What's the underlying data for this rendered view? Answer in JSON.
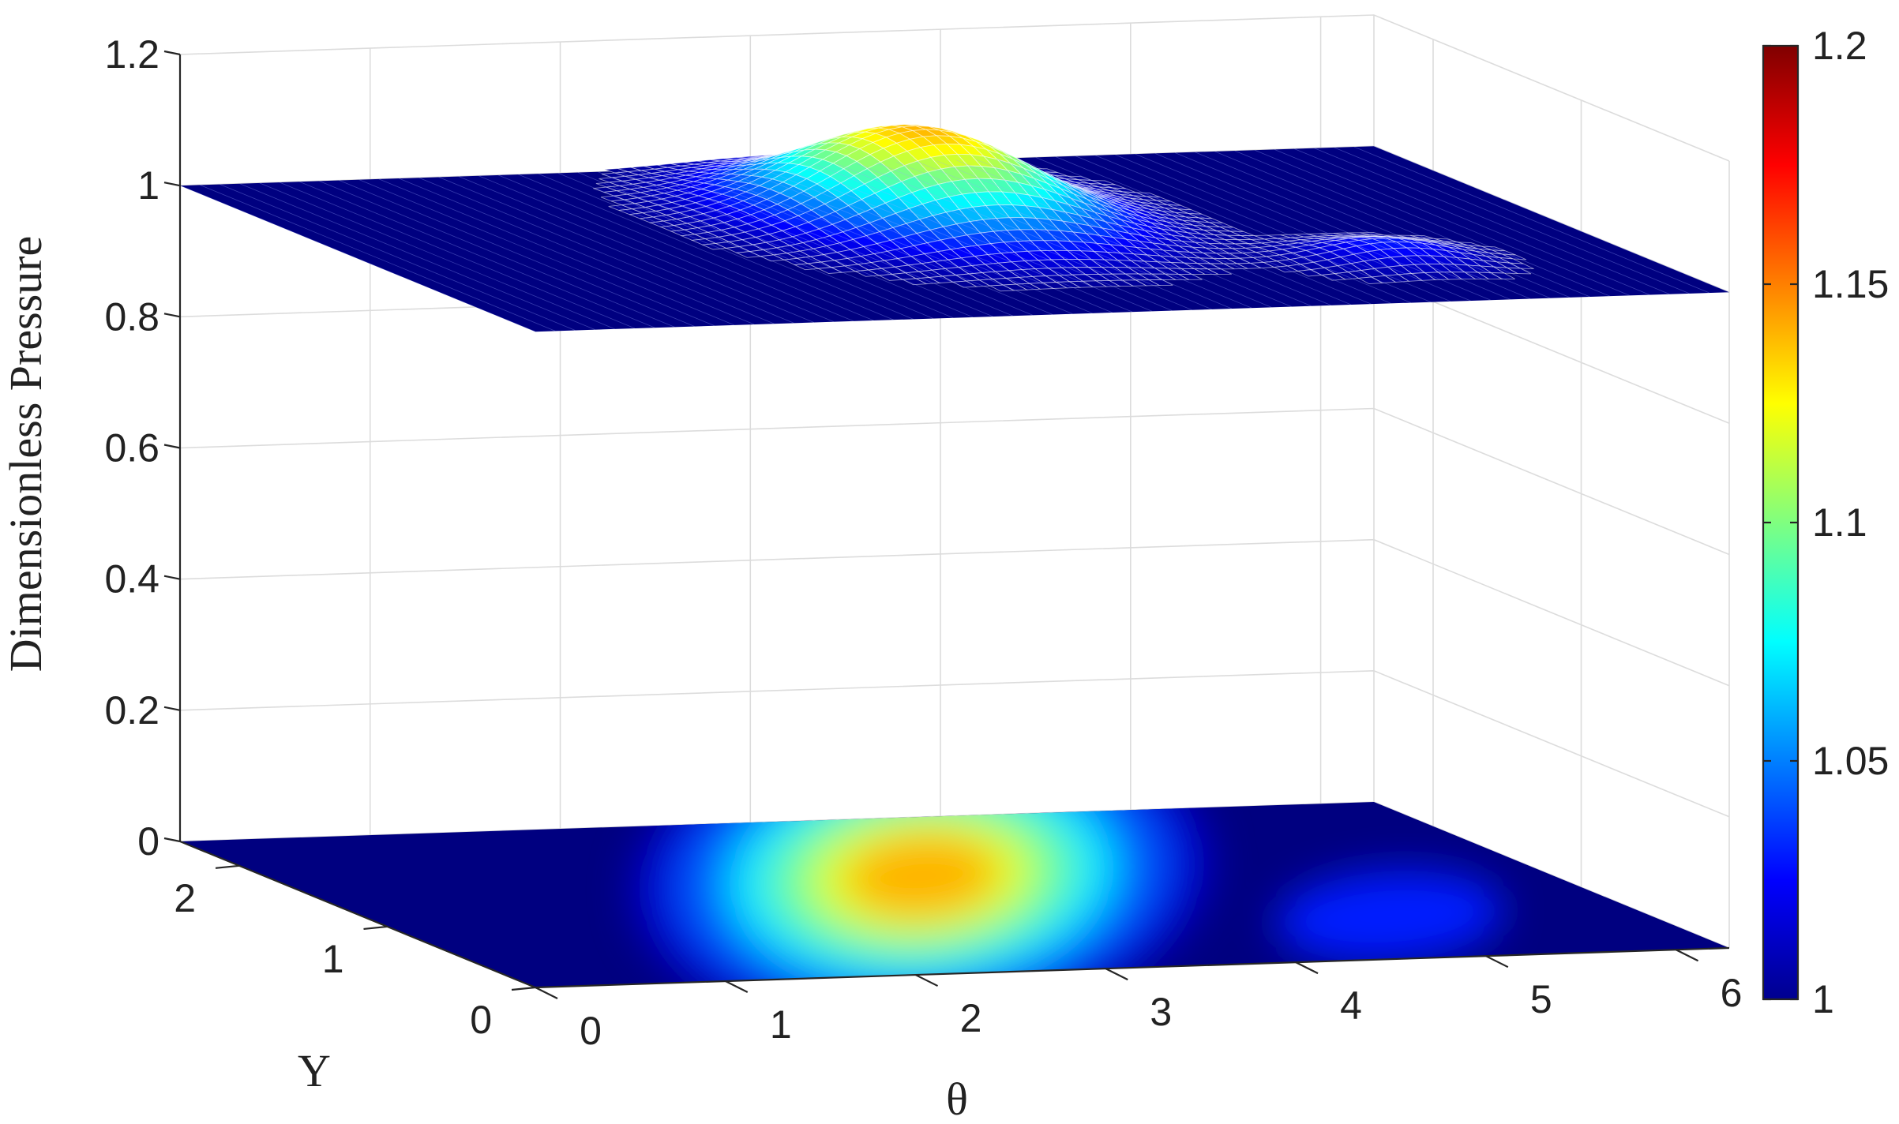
{
  "chart_data": {
    "type": "surface3d",
    "title": "",
    "xlabel": "θ",
    "ylabel": "Y",
    "zlabel": "Dimensionless Pressure",
    "x_ticks": [
      "0",
      "1",
      "2",
      "3",
      "4",
      "5",
      "6"
    ],
    "y_ticks": [
      "0",
      "1",
      "2"
    ],
    "z_ticks": [
      "0",
      "0.2",
      "0.4",
      "0.6",
      "0.8",
      "1",
      "1.2"
    ],
    "xlim": [
      0,
      6.28
    ],
    "ylim": [
      0,
      2.4
    ],
    "zlim": [
      0,
      1.2
    ],
    "colorbar": {
      "label": "",
      "range": [
        1,
        1.2
      ],
      "ticks": [
        "1",
        "1.05",
        "1.1",
        "1.15",
        "1.2"
      ],
      "colormap": "jet"
    },
    "surface": {
      "render": "mesh",
      "baseline_value": 1.0,
      "peak": {
        "theta": 3.2,
        "Y": 1.5,
        "value": 1.14
      },
      "secondary_peak": {
        "theta": 5.0,
        "Y": 0.65,
        "value": 1.03
      }
    },
    "projection": {
      "render": "filled-contour",
      "plane_z": 0
    }
  }
}
